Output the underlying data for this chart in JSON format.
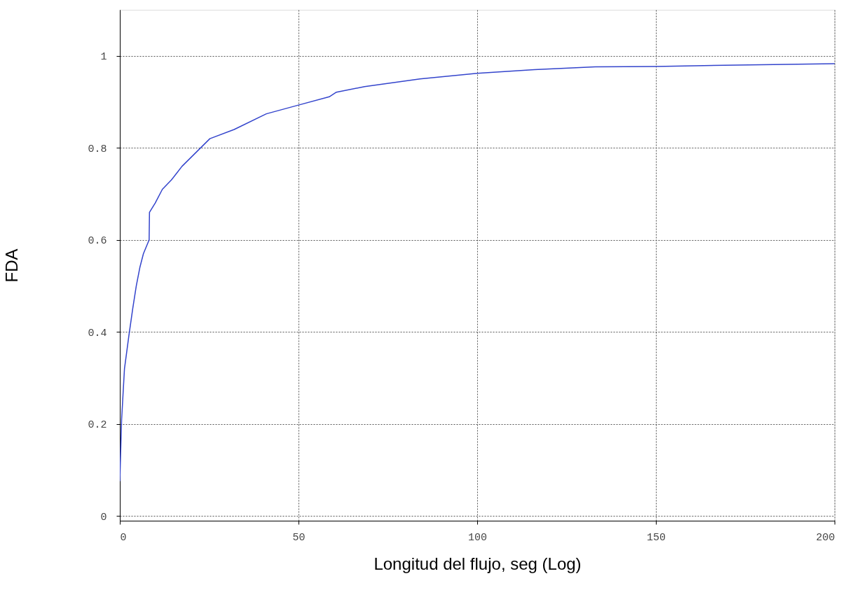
{
  "chart_data": {
    "type": "line",
    "xlabel": "Longitud del flujo, seg (Log)",
    "ylabel": "FDA",
    "x": [
      0,
      0.5,
      1.3,
      2.5,
      3.6,
      4.6,
      5.6,
      6.6,
      8.2,
      8.3,
      9.9,
      11.9,
      14.4,
      17.4,
      21.3,
      25.2,
      32,
      41,
      50,
      58.6,
      60.6,
      68.5,
      84,
      100,
      116,
      133,
      150,
      172.6,
      200
    ],
    "series": [
      {
        "color": "#3344cc",
        "values": [
          0.076,
          0.21,
          0.32,
          0.39,
          0.45,
          0.5,
          0.54,
          0.57,
          0.6,
          0.66,
          0.68,
          0.71,
          0.73,
          0.76,
          0.79,
          0.82,
          0.84,
          0.874,
          0.893,
          0.911,
          0.921,
          0.933,
          0.95,
          0.962,
          0.97,
          0.976,
          0.977,
          0.98,
          0.983
        ]
      }
    ],
    "xlim": [
      0,
      200
    ],
    "ylim": [
      -0.01,
      1.1
    ],
    "xticks": [
      0,
      50,
      100,
      150,
      200
    ],
    "yticks": [
      0,
      0.2,
      0.4,
      0.6,
      0.8,
      1
    ],
    "grid": true,
    "line_style": "solid",
    "marker": "none"
  }
}
